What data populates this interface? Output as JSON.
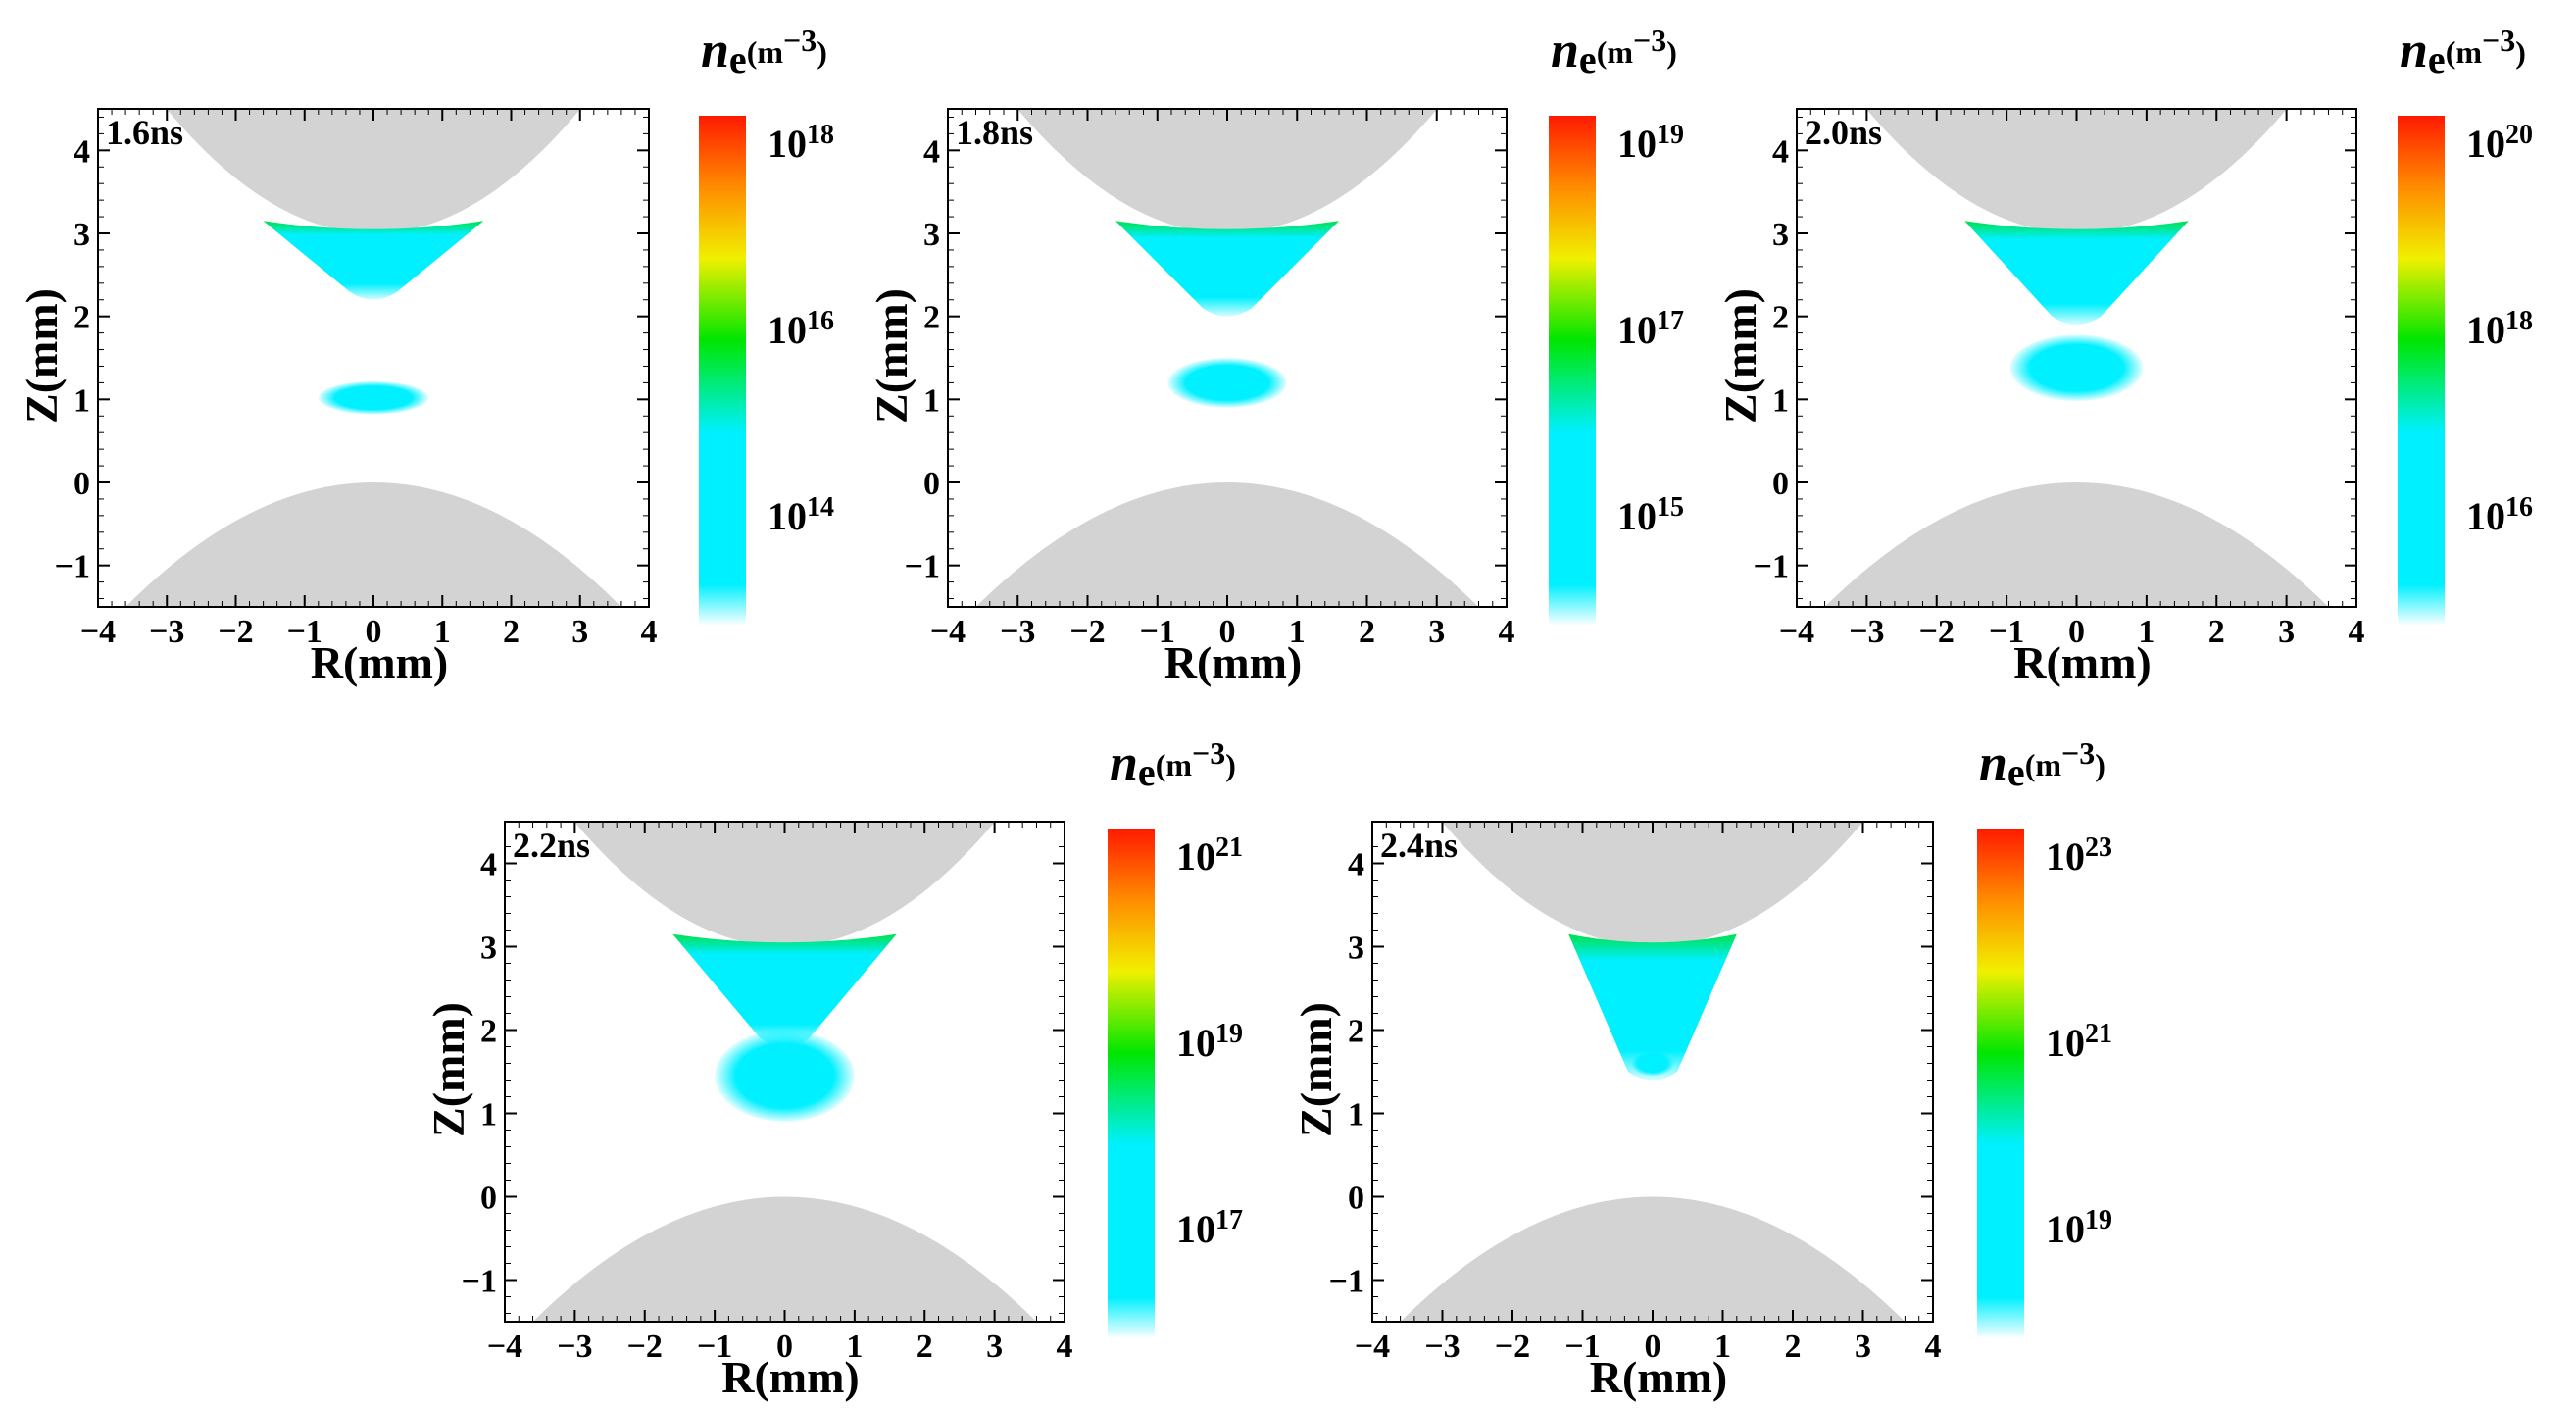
{
  "chart_data": [
    {
      "type": "heatmap",
      "title": "1.6ns",
      "xlabel": "R(mm)",
      "ylabel": "Z(mm)",
      "xlim": [
        -4,
        4
      ],
      "ylim": [
        -1.5,
        4.5
      ],
      "xticks": [
        "−4",
        "−3",
        "−2",
        "−1",
        "0",
        "1",
        "2",
        "3",
        "4"
      ],
      "yticks": [
        "−1",
        "0",
        "1",
        "2",
        "3",
        "4"
      ],
      "colorbar": {
        "title": "n",
        "subscript": "e",
        "units": "(m",
        "units_sup": "−3",
        "units_close": ")",
        "levels": [
          {
            "base": "10",
            "exp": "18"
          },
          {
            "base": "10",
            "exp": "16"
          },
          {
            "base": "10",
            "exp": "14"
          }
        ]
      },
      "regions": {
        "upper_cone_bottom_z": 2.3,
        "lower_blob_center_z": 1.02,
        "lower_blob_halfwidth_r": 0.8,
        "lower_blob_halfheight_z": 0.2
      }
    },
    {
      "type": "heatmap",
      "title": "1.8ns",
      "xlabel": "R(mm)",
      "ylabel": "Z(mm)",
      "xlim": [
        -4,
        4
      ],
      "ylim": [
        -1.5,
        4.5
      ],
      "xticks": [
        "−4",
        "−3",
        "−2",
        "−1",
        "0",
        "1",
        "2",
        "3",
        "4"
      ],
      "yticks": [
        "−1",
        "0",
        "1",
        "2",
        "3",
        "4"
      ],
      "colorbar": {
        "title": "n",
        "subscript": "e",
        "units": "(m",
        "units_sup": "−3",
        "units_close": ")",
        "levels": [
          {
            "base": "10",
            "exp": "19"
          },
          {
            "base": "10",
            "exp": "17"
          },
          {
            "base": "10",
            "exp": "15"
          }
        ]
      },
      "regions": {
        "upper_cone_bottom_z": 2.1,
        "lower_blob_center_z": 1.2,
        "lower_blob_halfwidth_r": 0.85,
        "lower_blob_halfheight_z": 0.3
      }
    },
    {
      "type": "heatmap",
      "title": "2.0ns",
      "xlabel": "R(mm)",
      "ylabel": "Z(mm)",
      "xlim": [
        -4,
        4
      ],
      "ylim": [
        -1.5,
        4.5
      ],
      "xticks": [
        "−4",
        "−3",
        "−2",
        "−1",
        "0",
        "1",
        "2",
        "3",
        "4"
      ],
      "yticks": [
        "−1",
        "0",
        "1",
        "2",
        "3",
        "4"
      ],
      "colorbar": {
        "title": "n",
        "subscript": "e",
        "units": "(m",
        "units_sup": "−3",
        "units_close": ")",
        "levels": [
          {
            "base": "10",
            "exp": "20"
          },
          {
            "base": "10",
            "exp": "18"
          },
          {
            "base": "10",
            "exp": "16"
          }
        ]
      },
      "regions": {
        "upper_cone_bottom_z": 2.0,
        "lower_blob_center_z": 1.38,
        "lower_blob_halfwidth_r": 0.95,
        "lower_blob_halfheight_z": 0.4
      }
    },
    {
      "type": "heatmap",
      "title": "2.2ns",
      "xlabel": "R(mm)",
      "ylabel": "Z(mm)",
      "xlim": [
        -4,
        4
      ],
      "ylim": [
        -1.5,
        4.5
      ],
      "xticks": [
        "−4",
        "−3",
        "−2",
        "−1",
        "0",
        "1",
        "2",
        "3",
        "4"
      ],
      "yticks": [
        "−1",
        "0",
        "1",
        "2",
        "3",
        "4"
      ],
      "colorbar": {
        "title": "n",
        "subscript": "e",
        "units": "(m",
        "units_sup": "−3",
        "units_close": ")",
        "levels": [
          {
            "base": "10",
            "exp": "21"
          },
          {
            "base": "10",
            "exp": "19"
          },
          {
            "base": "10",
            "exp": "17"
          }
        ]
      },
      "regions": {
        "upper_cone_bottom_z": 1.9,
        "lower_blob_center_z": 1.45,
        "lower_blob_halfwidth_r": 1.0,
        "lower_blob_halfheight_z": 0.55
      }
    },
    {
      "type": "heatmap",
      "title": "2.4ns",
      "xlabel": "R(mm)",
      "ylabel": "Z(mm)",
      "xlim": [
        -4,
        4
      ],
      "ylim": [
        -1.5,
        4.5
      ],
      "xticks": [
        "−4",
        "−3",
        "−2",
        "−1",
        "0",
        "1",
        "2",
        "3",
        "4"
      ],
      "yticks": [
        "−1",
        "0",
        "1",
        "2",
        "3",
        "4"
      ],
      "colorbar": {
        "title": "n",
        "subscript": "e",
        "units": "(m",
        "units_sup": "−3",
        "units_close": ")",
        "levels": [
          {
            "base": "10",
            "exp": "23"
          },
          {
            "base": "10",
            "exp": "21"
          },
          {
            "base": "10",
            "exp": "19"
          }
        ]
      },
      "regions": {
        "upper_cone_bottom_z": 1.5,
        "lower_blob_center_z": 1.6,
        "lower_blob_halfwidth_r": 0.3,
        "lower_blob_halfheight_z": 0.15
      }
    }
  ],
  "colors": {
    "electrode": "#d3d3d3",
    "plasma_cyan": "#00f0ff",
    "plasma_green": "#00e04a",
    "colormap": [
      "#ffffff",
      "#00f0ff",
      "#00f0ff",
      "#00e600",
      "#f0f000",
      "#ff8c00",
      "#ff1a00"
    ]
  }
}
